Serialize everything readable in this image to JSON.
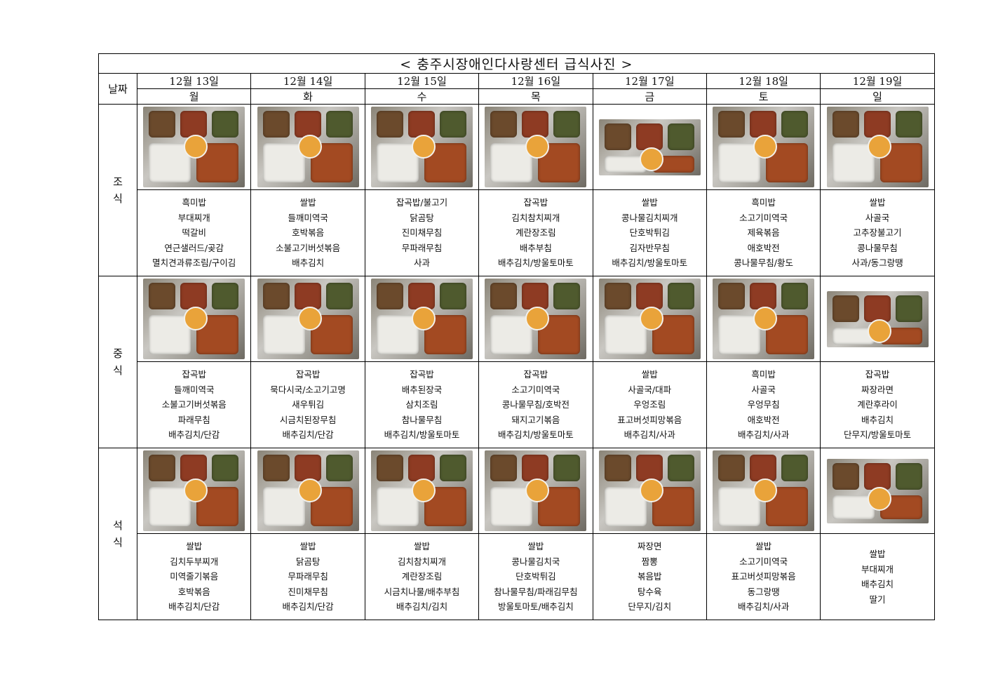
{
  "title": "< 충주시장애인다사랑센터 급식사진 >",
  "date_header": "날짜",
  "days": [
    {
      "date": "12월 13일",
      "weekday": "월"
    },
    {
      "date": "12월 14일",
      "weekday": "화"
    },
    {
      "date": "12월 15일",
      "weekday": "수"
    },
    {
      "date": "12월 16일",
      "weekday": "목"
    },
    {
      "date": "12월 17일",
      "weekday": "금"
    },
    {
      "date": "12월 18일",
      "weekday": "토"
    },
    {
      "date": "12월 19일",
      "weekday": "일"
    }
  ],
  "meals": [
    {
      "label": "조\n식",
      "menus": [
        [
          "흑미밥",
          "부대찌개",
          "떡갈비",
          "연근샐러드/곶감",
          "멸치견과류조림/구이김"
        ],
        [
          "쌀밥",
          "들깨미역국",
          "호박볶음",
          "소불고기버섯볶음",
          "배추김치"
        ],
        [
          "잡곡밥/불고기",
          "닭곰탕",
          "진미채무침",
          "무파래무침",
          "사과"
        ],
        [
          "잡곡밥",
          "김치참치찌개",
          "계란장조림",
          "배추부침",
          "배추김치/방울토마토"
        ],
        [
          "쌀밥",
          "콩나물김치찌개",
          "단호박튀김",
          "김자반무침",
          "배추김치/방울토마토"
        ],
        [
          "흑미밥",
          "소고기미역국",
          "제육볶음",
          "애호박전",
          "콩나물무침/황도"
        ],
        [
          "쌀밥",
          "사골국",
          "고추장불고기",
          "콩나물무침",
          "사과/동그랑땡"
        ]
      ]
    },
    {
      "label": "중\n식",
      "menus": [
        [
          "잡곡밥",
          "들깨미역국",
          "소불고기버섯볶음",
          "파래무침",
          "배추김치/단감"
        ],
        [
          "잡곡밥",
          "묵다시국/소고기고명",
          "새우튀김",
          "시금치된장무침",
          "배추김치/단감"
        ],
        [
          "잡곡밥",
          "배추된장국",
          "삼치조림",
          "참나물무침",
          "배추김치/방울토마토"
        ],
        [
          "잡곡밥",
          "소고기미역국",
          "콩나물무침/호박전",
          "돼지고기볶음",
          "배추김치/방울토마토"
        ],
        [
          "쌀밥",
          "사골국/대파",
          "우엉조림",
          "표고버섯피망볶음",
          "배추김치/사과"
        ],
        [
          "흑미밥",
          "사골국",
          "우엉무침",
          "애호박전",
          "배추김치/사과"
        ],
        [
          "잡곡밥",
          "짜장라면",
          "계란후라이",
          "배추김치",
          "단무지/방울토마토"
        ]
      ]
    },
    {
      "label": "석\n식",
      "menus": [
        [
          "쌀밥",
          "김치두부찌개",
          "미역줄기볶음",
          "호박볶음",
          "배추김치/단감"
        ],
        [
          "쌀밥",
          "닭곰탕",
          "무파래무침",
          "진미채무침",
          "배추김치/단감"
        ],
        [
          "쌀밥",
          "김치참치찌개",
          "계란장조림",
          "시금치나물/배추부침",
          "배추김치/김치"
        ],
        [
          "쌀밥",
          "콩나물김치국",
          "단호박튀김",
          "참나물무침/파래김무침",
          "방울토마토/배추김치"
        ],
        [
          "짜장면",
          "짬뽕",
          "볶음밥",
          "탕수육",
          "단무지/김치"
        ],
        [
          "쌀밥",
          "소고기미역국",
          "표고버섯피망볶음",
          "동그랑땡",
          "배추김치/사과"
        ],
        [
          "쌀밥",
          "부대찌개",
          "배추김치",
          "딸기"
        ]
      ]
    }
  ]
}
